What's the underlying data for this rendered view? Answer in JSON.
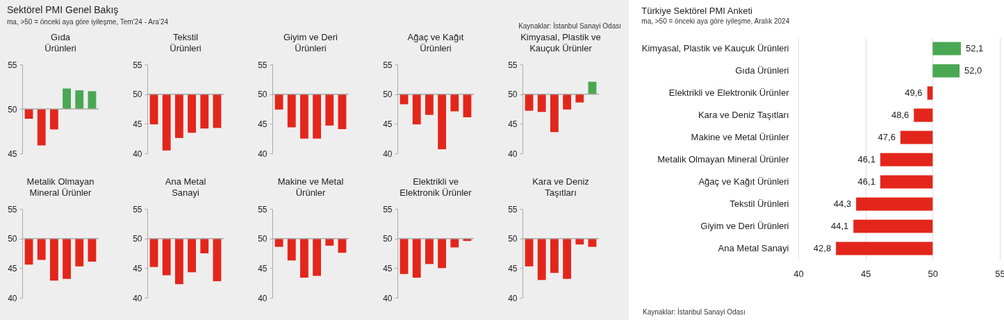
{
  "chart_data": [
    {
      "type": "other",
      "title": "Sektörel PMI Genel Bakış",
      "subtitle": "ma, >50 = önceki aya göre iyileşme, Tem’24 - Ara’24",
      "annotations": [
        "Kaynaklar: İstanbul Sanayi Odası"
      ]
    },
    {
      "type": "bar",
      "title": "Gıda Ürünleri",
      "categories": [
        null,
        null,
        null,
        null,
        null,
        null
      ],
      "base": [
        50,
        50,
        50,
        50,
        50,
        50
      ],
      "values": [
        -1.1,
        -4.1,
        -2.3,
        2.3,
        2.1,
        2.0
      ],
      "colors": [
        "#e3261b",
        "#e3261b",
        "#e3261b",
        "#4aa753",
        "#4aa753",
        "#4aa753"
      ],
      "ylim": [
        45,
        55
      ],
      "yticks": [
        45,
        50,
        55
      ],
      "ref_lines": [
        {
          "axis": "y",
          "value": 50,
          "color": "#aaaaaa"
        }
      ]
    },
    {
      "type": "bar",
      "title": "Tekstil Ürünleri",
      "categories": [
        null,
        null,
        null,
        null,
        null,
        null
      ],
      "base": [
        50,
        50,
        50,
        50,
        50,
        50
      ],
      "values": [
        -5.1,
        -9.5,
        -7.4,
        -6.5,
        -5.8,
        -5.7
      ],
      "colors": [
        "#e3261b",
        "#e3261b",
        "#e3261b",
        "#e3261b",
        "#e3261b",
        "#e3261b"
      ],
      "ylim": [
        40,
        55
      ],
      "yticks": [
        40,
        45,
        50,
        55
      ],
      "ref_lines": [
        {
          "axis": "y",
          "value": 50,
          "color": "#aaaaaa"
        }
      ]
    },
    {
      "type": "bar",
      "title": "Giyim ve Deri Ürünleri",
      "categories": [
        null,
        null,
        null,
        null,
        null,
        null
      ],
      "base": [
        50,
        50,
        50,
        50,
        50,
        50
      ],
      "values": [
        -2.6,
        -5.6,
        -7.5,
        -7.5,
        -5.3,
        -5.9
      ],
      "colors": [
        "#e3261b",
        "#e3261b",
        "#e3261b",
        "#e3261b",
        "#e3261b",
        "#e3261b"
      ],
      "ylim": [
        40,
        55
      ],
      "yticks": [
        40,
        45,
        50,
        55
      ],
      "ref_lines": [
        {
          "axis": "y",
          "value": 50,
          "color": "#aaaaaa"
        }
      ]
    },
    {
      "type": "bar",
      "title": "Ağaç ve Kağıt Ürünleri",
      "categories": [
        null,
        null,
        null,
        null,
        null,
        null
      ],
      "base": [
        50,
        50,
        50,
        50,
        50,
        50
      ],
      "values": [
        -1.7,
        -5.1,
        -3.5,
        -9.3,
        -2.9,
        -3.9
      ],
      "colors": [
        "#e3261b",
        "#e3261b",
        "#e3261b",
        "#e3261b",
        "#e3261b",
        "#e3261b"
      ],
      "ylim": [
        40,
        55
      ],
      "yticks": [
        40,
        45,
        50,
        55
      ],
      "ref_lines": [
        {
          "axis": "y",
          "value": 50,
          "color": "#aaaaaa"
        }
      ]
    },
    {
      "type": "bar",
      "title": "Kimyasal, Plastik ve Kauçuk Ürünler",
      "categories": [
        null,
        null,
        null,
        null,
        null,
        null
      ],
      "base": [
        50,
        50,
        50,
        50,
        50,
        50
      ],
      "values": [
        -2.8,
        -3.0,
        -6.4,
        -2.6,
        -1.4,
        2.1
      ],
      "colors": [
        "#e3261b",
        "#e3261b",
        "#e3261b",
        "#e3261b",
        "#e3261b",
        "#4aa753"
      ],
      "ylim": [
        40,
        55
      ],
      "yticks": [
        40,
        45,
        50,
        55
      ],
      "ref_lines": [
        {
          "axis": "y",
          "value": 50,
          "color": "#aaaaaa"
        }
      ]
    },
    {
      "type": "bar",
      "title": "Metalik Olmayan Mineral Ürünler",
      "categories": [
        null,
        null,
        null,
        null,
        null,
        null
      ],
      "base": [
        50,
        50,
        50,
        50,
        50,
        50
      ],
      "values": [
        -4.4,
        -3.6,
        -7.1,
        -6.8,
        -4.7,
        -3.9
      ],
      "colors": [
        "#e3261b",
        "#e3261b",
        "#e3261b",
        "#e3261b",
        "#e3261b",
        "#e3261b"
      ],
      "ylim": [
        40,
        55
      ],
      "yticks": [
        40,
        45,
        50,
        55
      ],
      "ref_lines": [
        {
          "axis": "y",
          "value": 50,
          "color": "#aaaaaa"
        }
      ]
    },
    {
      "type": "bar",
      "title": "Ana Metal Sanayi",
      "categories": [
        null,
        null,
        null,
        null,
        null,
        null
      ],
      "base": [
        50,
        50,
        50,
        50,
        50,
        50
      ],
      "values": [
        -4.8,
        -6.2,
        -7.7,
        -5.7,
        -2.5,
        -7.2
      ],
      "colors": [
        "#e3261b",
        "#e3261b",
        "#e3261b",
        "#e3261b",
        "#e3261b",
        "#e3261b"
      ],
      "ylim": [
        40,
        55
      ],
      "yticks": [
        40,
        45,
        50,
        55
      ],
      "ref_lines": [
        {
          "axis": "y",
          "value": 50,
          "color": "#aaaaaa"
        }
      ]
    },
    {
      "type": "bar",
      "title": "Makine ve Metal Ürünler",
      "categories": [
        null,
        null,
        null,
        null,
        null,
        null
      ],
      "base": [
        50,
        50,
        50,
        50,
        50,
        50
      ],
      "values": [
        -1.4,
        -3.7,
        -6.6,
        -6.3,
        -1.2,
        -2.4
      ],
      "colors": [
        "#e3261b",
        "#e3261b",
        "#e3261b",
        "#e3261b",
        "#e3261b",
        "#e3261b"
      ],
      "ylim": [
        40,
        55
      ],
      "yticks": [
        40,
        45,
        50,
        55
      ],
      "ref_lines": [
        {
          "axis": "y",
          "value": 50,
          "color": "#aaaaaa"
        }
      ]
    },
    {
      "type": "bar",
      "title": "Elektrikli ve Elektronik Ürünler",
      "categories": [
        null,
        null,
        null,
        null,
        null,
        null
      ],
      "base": [
        50,
        50,
        50,
        50,
        50,
        50
      ],
      "values": [
        -6.0,
        -6.6,
        -4.3,
        -5.0,
        -1.5,
        -0.4
      ],
      "colors": [
        "#e3261b",
        "#e3261b",
        "#e3261b",
        "#e3261b",
        "#e3261b",
        "#e3261b"
      ],
      "ylim": [
        40,
        55
      ],
      "yticks": [
        40,
        45,
        50,
        55
      ],
      "ref_lines": [
        {
          "axis": "y",
          "value": 50,
          "color": "#aaaaaa"
        }
      ]
    },
    {
      "type": "bar",
      "title": "Kara ve Deniz Taşıtları",
      "categories": [
        null,
        null,
        null,
        null,
        null,
        null
      ],
      "base": [
        50,
        50,
        50,
        50,
        50,
        50
      ],
      "values": [
        -4.7,
        -7.0,
        -5.8,
        -6.8,
        -1.0,
        -1.4
      ],
      "colors": [
        "#e3261b",
        "#e3261b",
        "#e3261b",
        "#e3261b",
        "#e3261b",
        "#e3261b"
      ],
      "ylim": [
        40,
        55
      ],
      "yticks": [
        40,
        45,
        50,
        55
      ],
      "ref_lines": [
        {
          "axis": "y",
          "value": 50,
          "color": "#aaaaaa"
        }
      ]
    },
    {
      "type": "bar",
      "orientation": "horizontal",
      "title": "Türkiye Sektörel PMI Anketi",
      "subtitle": "ma, >50 = önceki aya göre iyileşme, Aralık 2024",
      "categories": [
        "Kimyasal, Plastik ve Kauçuk Ürünleri",
        "Gıda Ürünleri",
        "Elektrikli ve Elektronik Ürünler",
        "Kara ve Deniz Taşıtları",
        "Makine ve Metal Ürünler",
        "Metalik Olmayan Mineral Ürünler",
        "Ağaç ve Kağıt Ürünleri",
        "Tekstil Ürünleri",
        "Giyim ve Deri Ürünleri",
        "Ana Metal Sanayi"
      ],
      "base": [
        50,
        50,
        50,
        50,
        50,
        50,
        50,
        50,
        50,
        50
      ],
      "values": [
        2.1,
        2.0,
        -0.4,
        -1.4,
        -2.4,
        -3.9,
        -3.9,
        -5.7,
        -5.9,
        -7.2
      ],
      "value_labels": [
        "52,1",
        "52,0",
        "49,6",
        "48,6",
        "47,6",
        "46,1",
        "46,1",
        "44,3",
        "44,1",
        "42,8"
      ],
      "colors": [
        "#4aa753",
        "#4aa753",
        "#e3261b",
        "#e3261b",
        "#e3261b",
        "#e3261b",
        "#e3261b",
        "#e3261b",
        "#e3261b",
        "#e3261b"
      ],
      "xlim": [
        40,
        55
      ],
      "xticks": [
        40,
        45,
        50,
        55
      ],
      "grid": "x",
      "annotations": [
        "Kaynaklar: İstanbul Sanayi Odası"
      ]
    }
  ]
}
